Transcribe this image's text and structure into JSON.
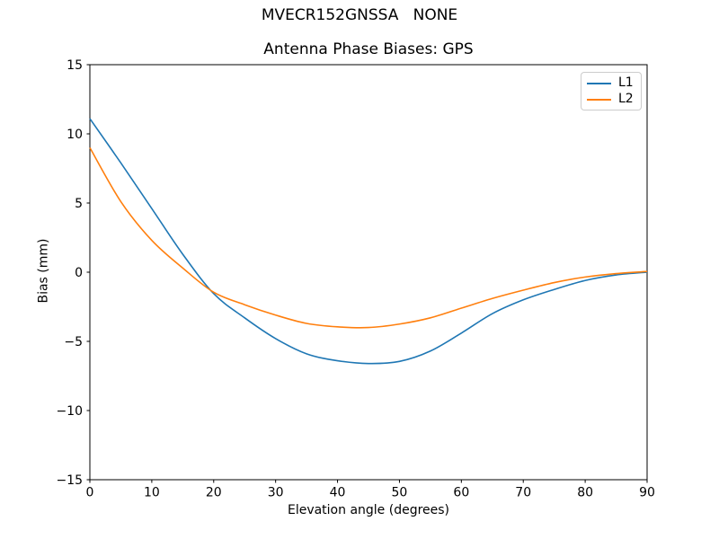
{
  "chart_data": {
    "type": "line",
    "title": "MVECR152GNSSA   NONE",
    "subtitle": "Antenna Phase Biases: GPS",
    "xlabel": "Elevation angle (degrees)",
    "ylabel": "Bias (mm)",
    "xlim": [
      0,
      90
    ],
    "ylim": [
      -15,
      15
    ],
    "xticks": [
      0,
      10,
      20,
      30,
      40,
      50,
      60,
      70,
      80,
      90
    ],
    "yticks": [
      -15,
      -10,
      -5,
      0,
      5,
      10,
      15
    ],
    "grid": false,
    "legend_position": "upper right",
    "background_color": "#ffffff",
    "spine_color": "#000000",
    "x": [
      0,
      5,
      10,
      15,
      20,
      25,
      30,
      35,
      40,
      45,
      50,
      55,
      60,
      65,
      70,
      75,
      80,
      85,
      90
    ],
    "series": [
      {
        "name": "L1",
        "color": "#1f77b4",
        "values": [
          11.1,
          7.9,
          4.6,
          1.3,
          -1.55,
          -3.3,
          -4.8,
          -5.9,
          -6.4,
          -6.6,
          -6.45,
          -5.7,
          -4.4,
          -3.0,
          -2.0,
          -1.25,
          -0.6,
          -0.2,
          0.0
        ]
      },
      {
        "name": "L2",
        "color": "#ff7f0e",
        "values": [
          9.0,
          5.1,
          2.3,
          0.3,
          -1.45,
          -2.35,
          -3.1,
          -3.7,
          -3.95,
          -4.0,
          -3.75,
          -3.3,
          -2.6,
          -1.9,
          -1.3,
          -0.75,
          -0.35,
          -0.1,
          0.05
        ]
      }
    ]
  }
}
